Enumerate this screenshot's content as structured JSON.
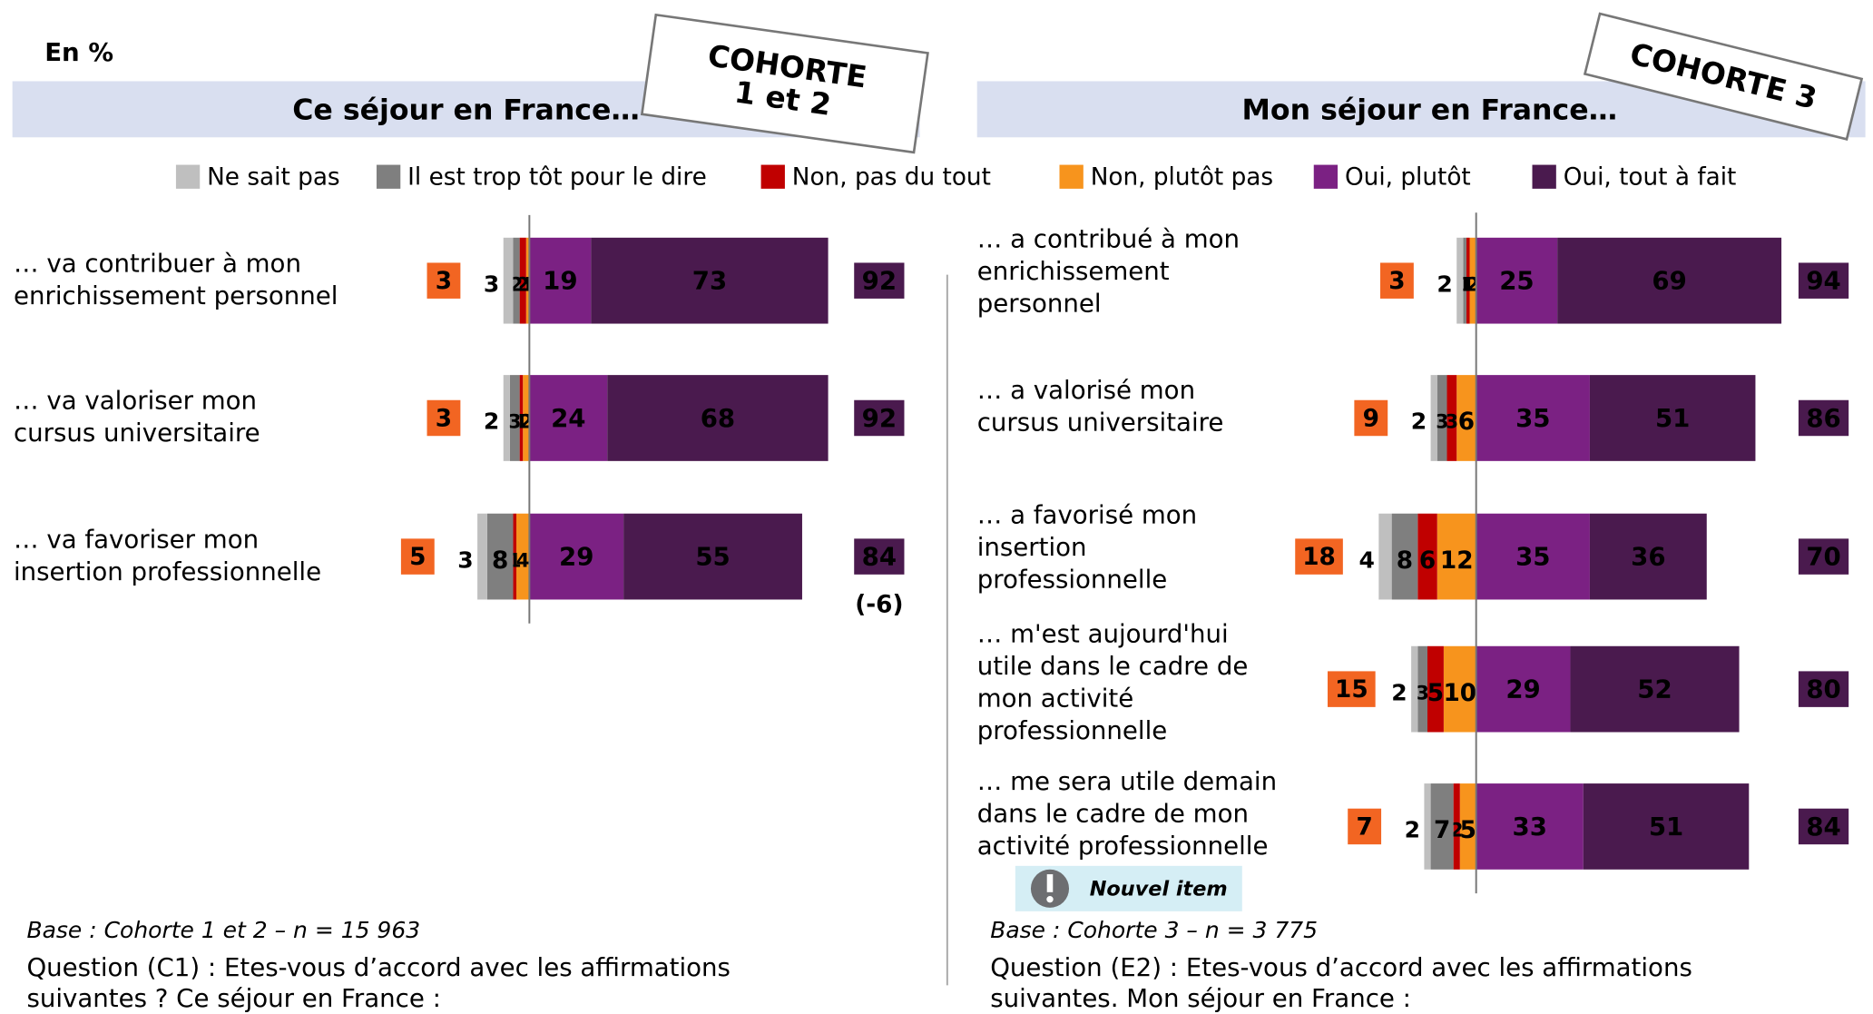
{
  "unit_label": "En %",
  "legend": [
    {
      "name": "Ne sait pas",
      "color": "#bfbfbf"
    },
    {
      "name": "Il est trop tôt pour le dire",
      "color": "#7f7f7f"
    },
    {
      "name": "Non, pas du tout",
      "color": "#c00000"
    },
    {
      "name": "Non, plutôt pas",
      "color": "#f7941d"
    },
    {
      "name": "Oui, plutôt",
      "color": "#7b2183"
    },
    {
      "name": "Oui, tout à fait",
      "color": "#4a1a4e"
    }
  ],
  "chart_data": [
    {
      "type": "diverging_bar",
      "title": "Ce séjour en France…",
      "stamp": "COHORTE\n1 et 2",
      "categories": [
        "… va contribuer à mon\nenrichissement personnel",
        "… va valoriser mon\ncursus universitaire",
        "… va favoriser mon\ninsertion professionnelle"
      ],
      "series": [
        {
          "values": [
            3,
            2,
            3
          ]
        },
        {
          "values": [
            2,
            3,
            8
          ]
        },
        {
          "values": [
            2,
            1,
            1
          ]
        },
        {
          "values": [
            1,
            2,
            4
          ]
        },
        {
          "values": [
            19,
            24,
            29
          ]
        },
        {
          "values": [
            73,
            68,
            55
          ]
        }
      ],
      "negative_totals": [
        3,
        3,
        5
      ],
      "positive_totals": [
        92,
        92,
        84
      ],
      "note": "(-6)",
      "base": "Base : Cohorte 1 et 2 – n = 15 963",
      "question": "Question (C1) : Etes-vous d’accord avec les affirmations\nsuivantes ? Ce séjour en France :"
    },
    {
      "type": "diverging_bar",
      "title": "Mon séjour en France…",
      "stamp": "COHORTE 3",
      "categories": [
        "… a contribué à mon\nenrichissement\npersonnel",
        "… a valorisé mon\ncursus universitaire",
        "… a favorisé mon\ninsertion\nprofessionnelle",
        "… m'est aujourd'hui\nutile dans le cadre de\nmon activité\nprofessionnelle",
        "… me sera utile demain\ndans le cadre de mon\nactivité professionnelle"
      ],
      "series": [
        {
          "values": [
            2,
            2,
            4,
            2,
            2
          ]
        },
        {
          "values": [
            1,
            3,
            8,
            3,
            7
          ]
        },
        {
          "values": [
            1,
            3,
            6,
            5,
            2
          ]
        },
        {
          "values": [
            2,
            6,
            12,
            10,
            5
          ]
        },
        {
          "values": [
            25,
            35,
            35,
            29,
            33
          ]
        },
        {
          "values": [
            69,
            51,
            36,
            52,
            51
          ]
        }
      ],
      "negative_totals": [
        3,
        9,
        18,
        15,
        7
      ],
      "positive_totals": [
        94,
        86,
        70,
        80,
        84
      ],
      "badge": "Nouvel item",
      "base": "Base : Cohorte 3 – n = 3 775",
      "question": "Question (E2) : Etes-vous d’accord avec les affirmations\nsuivantes. Mon séjour en France :"
    }
  ]
}
